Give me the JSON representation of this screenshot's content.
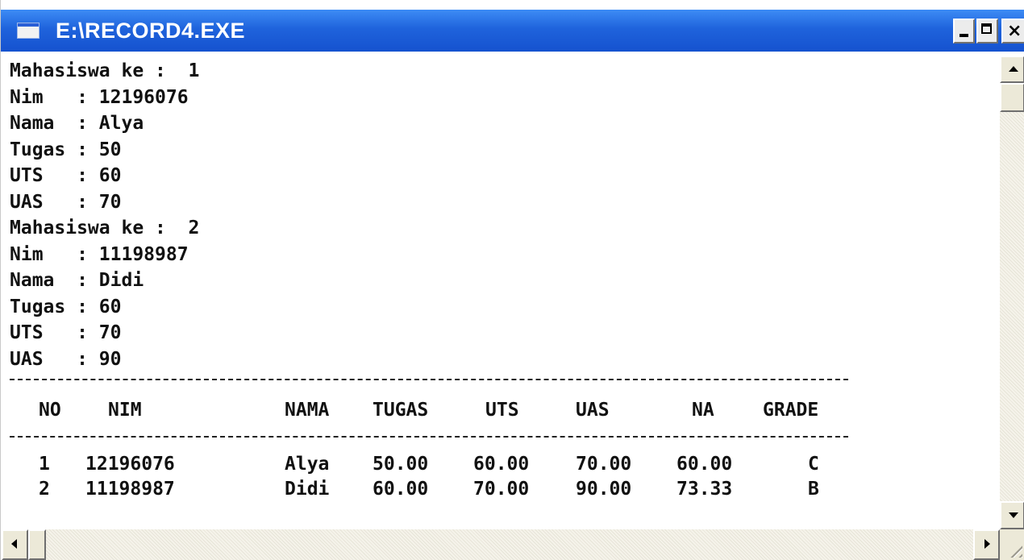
{
  "window": {
    "title": "E:\\RECORD4.EXE"
  },
  "input_lines": [
    "Mahasiswa ke :  1",
    "Nim   : 12196076",
    "Nama  : Alya",
    "Tugas : 50",
    "UTS   : 60",
    "UAS   : 70",
    "Mahasiswa ke :  2",
    "Nim   : 11198987",
    "Nama  : Didi",
    "Tugas : 60",
    "UTS   : 70",
    "UAS   : 90"
  ],
  "table": {
    "headers": [
      "NO",
      "NIM",
      "NAMA",
      "TUGAS",
      "UTS",
      "UAS",
      "NA",
      "GRADE"
    ],
    "rows": [
      [
        "1",
        "12196076",
        "Alya",
        "50.00",
        "60.00",
        "70.00",
        "60.00",
        "C"
      ],
      [
        "2",
        "11198987",
        "Didi",
        "60.00",
        "70.00",
        "90.00",
        "73.33",
        "B"
      ]
    ]
  },
  "icons": {
    "app": "console-app-icon",
    "minimize": "minimize-icon",
    "maximize": "maximize-icon",
    "close": "close-icon",
    "scroll_up": "scroll-up-arrow-icon",
    "scroll_down": "scroll-down-arrow-icon",
    "scroll_left": "scroll-left-arrow-icon",
    "scroll_right": "scroll-right-arrow-icon",
    "resize": "resize-grip-icon"
  },
  "colors": {
    "titlebar_top": "#3d8cf5",
    "titlebar_bottom": "#1552cf",
    "console_bg": "#ffffff",
    "console_text": "#111111"
  }
}
